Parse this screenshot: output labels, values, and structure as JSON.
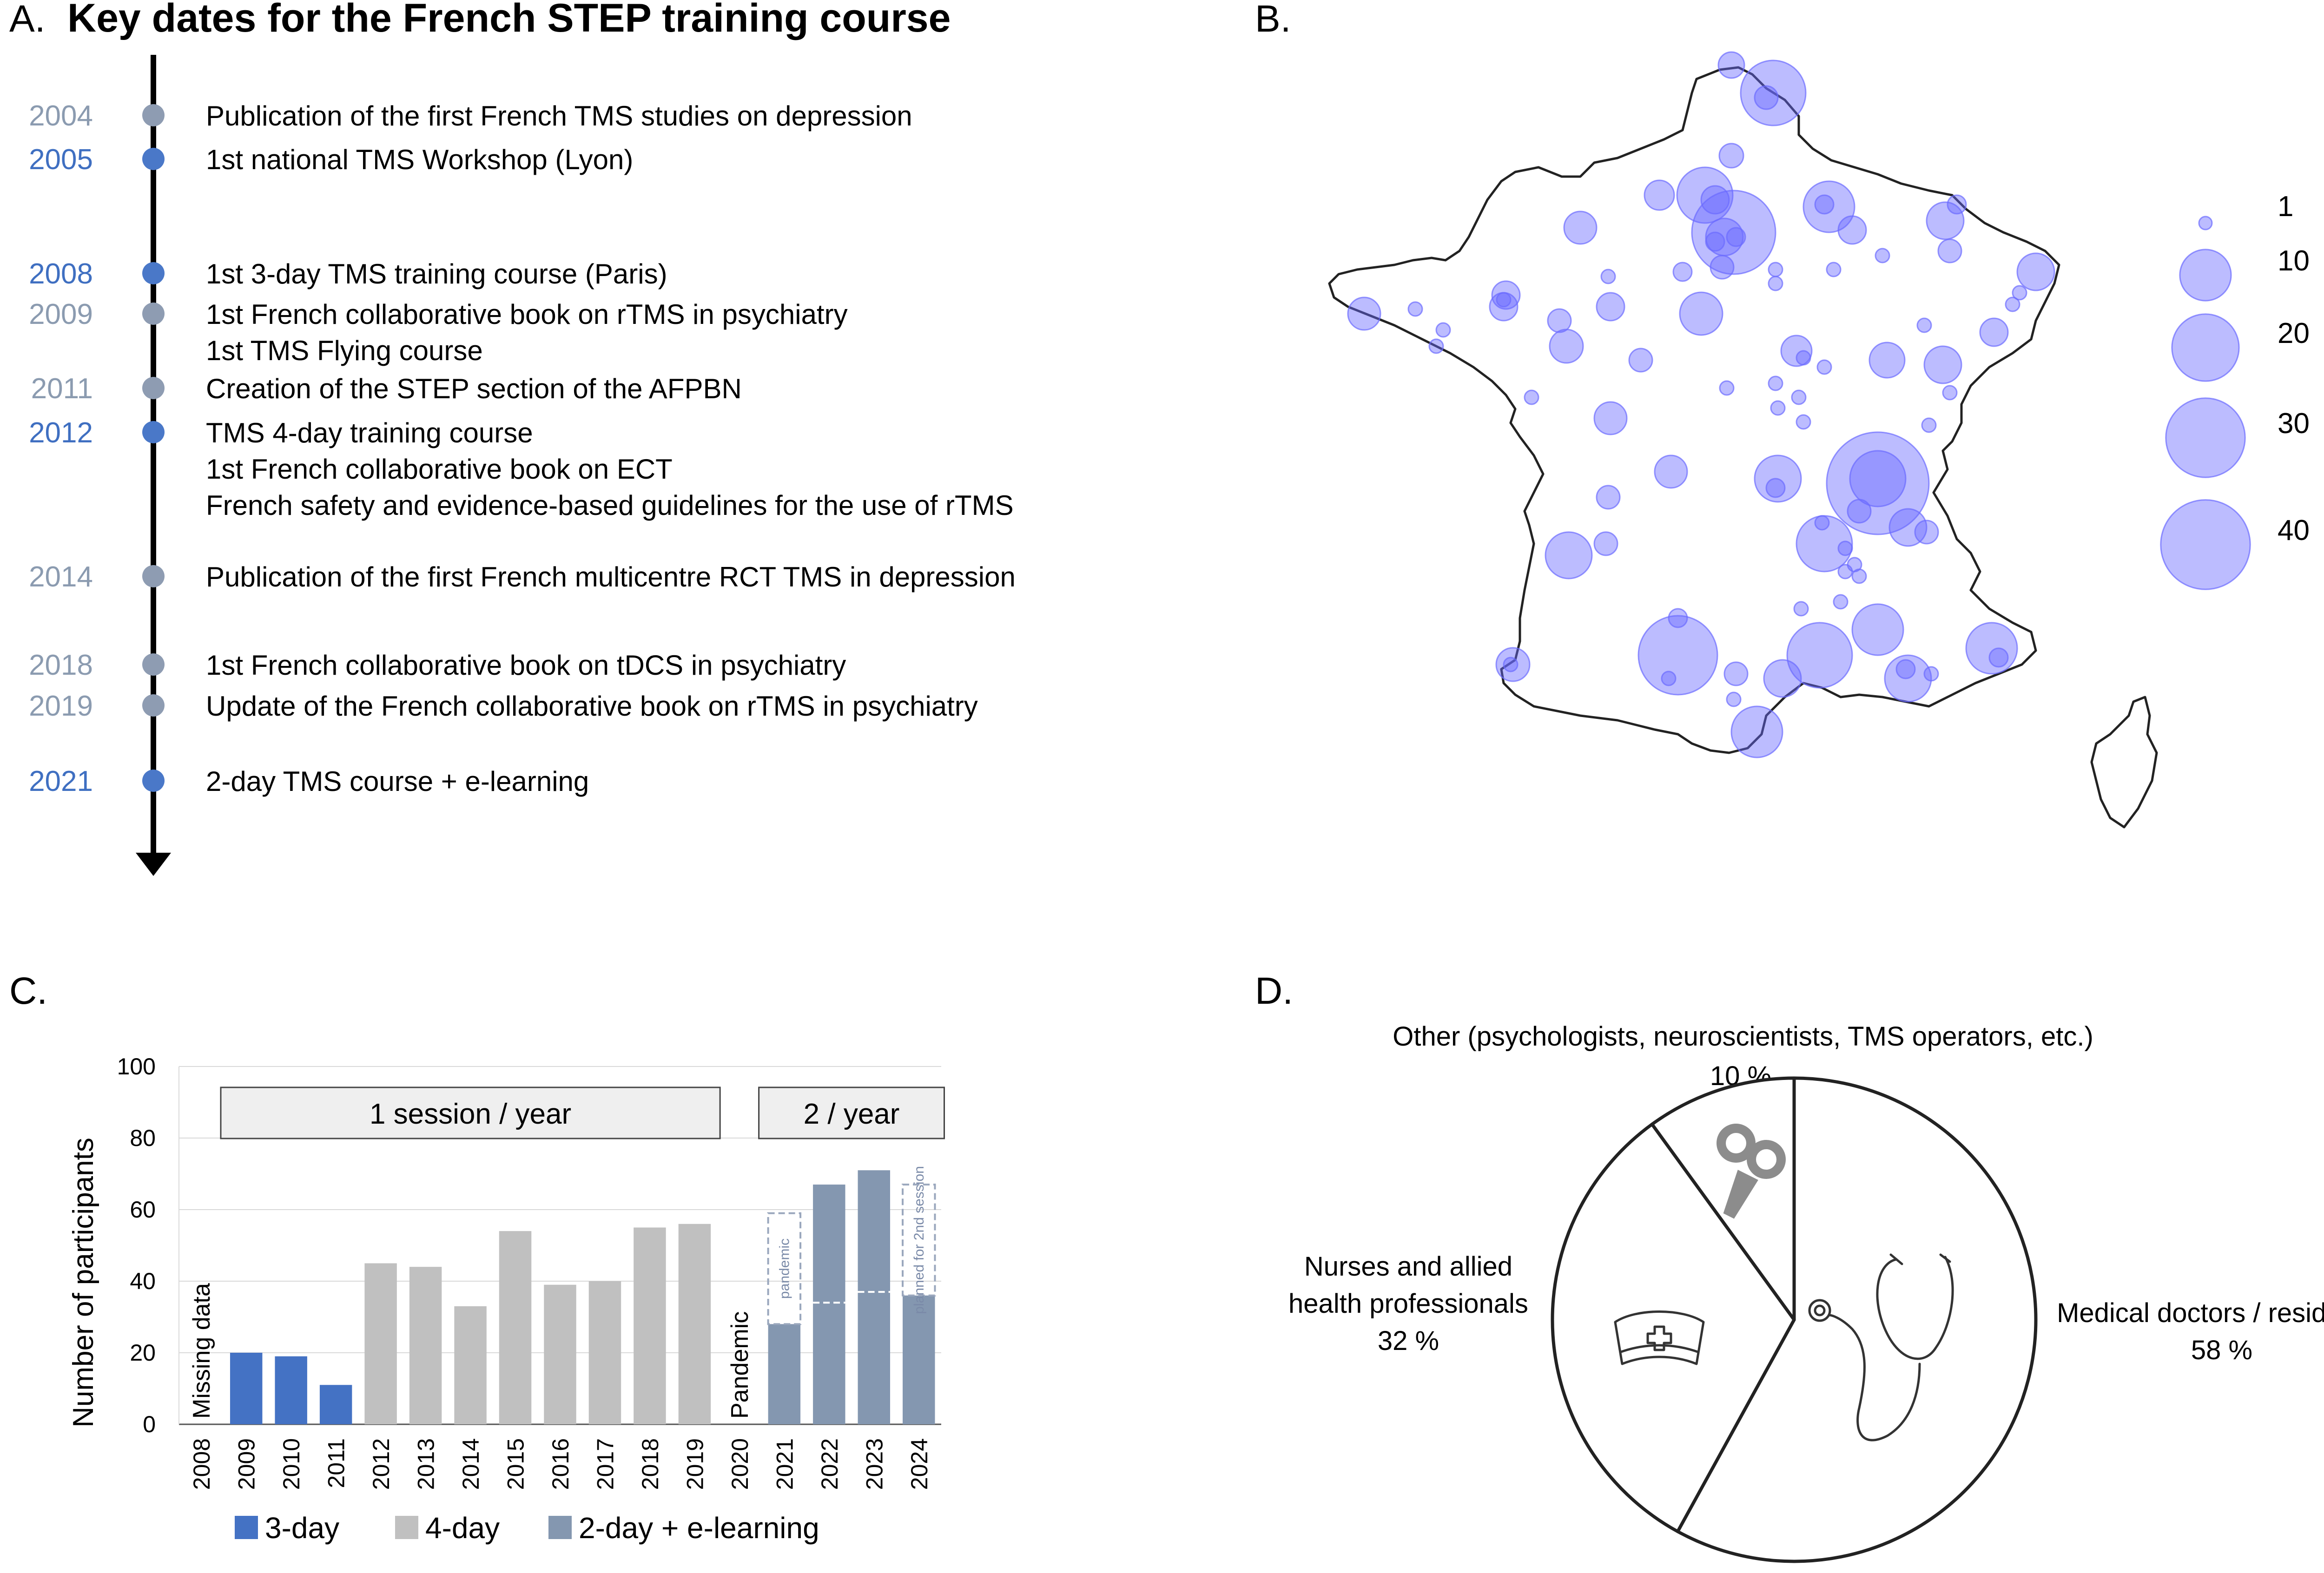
{
  "panel_a": {
    "letter": "A.",
    "title": "Key dates for the French STEP training course",
    "events": [
      {
        "year": "2004",
        "lines": [
          "Publication of the first French TMS studies on depression"
        ],
        "color": "#8b9bb0"
      },
      {
        "year": "2005",
        "lines": [
          "1st national TMS Workshop (Lyon)"
        ],
        "color": "#3f6fc1"
      },
      {
        "year": "2008",
        "lines": [
          "1st 3-day TMS training course (Paris)"
        ],
        "color": "#3f6fc1"
      },
      {
        "year": "2009",
        "lines": [
          "1st French collaborative book on rTMS in psychiatry",
          "1st TMS Flying course"
        ],
        "color": "#8b9bb0"
      },
      {
        "year": "2011",
        "lines": [
          "Creation of the STEP section of the AFPBN"
        ],
        "color": "#8b9bb0"
      },
      {
        "year": "2012",
        "lines": [
          "TMS 4-day training course",
          "1st French collaborative book on ECT",
          "French safety and evidence-based guidelines for the use of rTMS"
        ],
        "color": "#3f6fc1"
      },
      {
        "year": "2014",
        "lines": [
          "Publication of the first French multicentre RCT TMS in depression"
        ],
        "color": "#8b9bb0"
      },
      {
        "year": "2018",
        "lines": [
          "1st French collaborative book on tDCS in psychiatry"
        ],
        "color": "#8b9bb0"
      },
      {
        "year": "2019",
        "lines": [
          "Update of the French collaborative book on rTMS in psychiatry"
        ],
        "color": "#8b9bb0"
      },
      {
        "year": "2021",
        "lines": [
          "2-day TMS course + e-learning"
        ],
        "color": "#3f6fc1"
      }
    ],
    "dot_color_dark": "#4a78c8",
    "dot_color_light": "#8e9cb2"
  },
  "panel_b": {
    "letter": "B.",
    "legend": [
      {
        "label": "1",
        "value": 1
      },
      {
        "label": "10",
        "value": 10
      },
      {
        "label": "20",
        "value": 20
      },
      {
        "label": "30",
        "value": 30
      },
      {
        "label": "40",
        "value": 40
      }
    ],
    "bubble_color": "#6b6bff"
  },
  "panel_c": {
    "letter": "C.",
    "chart_data": {
      "type": "bar",
      "ylabel": "Number of participants",
      "ylim": [
        0,
        100
      ],
      "yticks": [
        "0",
        "20",
        "40",
        "60",
        "80",
        "100"
      ],
      "categories": [
        "2008",
        "2009",
        "2010",
        "2011",
        "2012",
        "2013",
        "2014",
        "2015",
        "2016",
        "2017",
        "2018",
        "2019",
        "2020",
        "2021",
        "2022",
        "2023",
        "2024"
      ],
      "series": [
        {
          "name": "3-day",
          "color": "#4472c4",
          "values": [
            null,
            20,
            19,
            11,
            null,
            null,
            null,
            null,
            null,
            null,
            null,
            null,
            null,
            null,
            null,
            null,
            null
          ]
        },
        {
          "name": "4-day",
          "color": "#c0c0c0",
          "values": [
            null,
            null,
            null,
            null,
            45,
            44,
            33,
            54,
            39,
            40,
            55,
            56,
            null,
            null,
            null,
            null,
            null
          ]
        },
        {
          "name": "2-day + e-learning",
          "color": "#8497b0",
          "values": [
            null,
            null,
            null,
            null,
            null,
            null,
            null,
            null,
            null,
            null,
            null,
            null,
            null,
            28,
            67,
            71,
            36
          ]
        }
      ],
      "session_splits": [
        null,
        null,
        null,
        null,
        null,
        null,
        null,
        null,
        null,
        null,
        null,
        null,
        null,
        null,
        34,
        37,
        null
      ],
      "dashed_boxes": [
        {
          "category": "2021",
          "from": 28,
          "to": 59,
          "text": "pandemic"
        },
        {
          "category": "2024",
          "from": 36,
          "to": 67,
          "text": "planned for 2nd session"
        }
      ],
      "annotations": [
        {
          "category": "2008",
          "text": "Missing data"
        },
        {
          "category": "2020",
          "text": "Pandemic"
        }
      ],
      "bands": [
        {
          "text": "1 session / year",
          "from": "2009",
          "to": "2019"
        },
        {
          "text": "2 / year",
          "from": "2021",
          "to": "2024"
        }
      ],
      "grid": true,
      "legend_position": "bottom"
    }
  },
  "panel_d": {
    "letter": "D.",
    "chart_data": {
      "type": "pie",
      "slices": [
        {
          "label": "Medical doctors / residents",
          "value": 58,
          "pct": "58 %"
        },
        {
          "label": "Nurses and allied health professionals",
          "value": 32,
          "pct": "32 %"
        },
        {
          "label": "Other (psychologists, neuroscientists, TMS operators, etc.)",
          "value": 10,
          "pct": "10 %"
        }
      ],
      "icons": [
        "stethoscope-icon",
        "nurse-cap-icon",
        "tms-coil-icon"
      ]
    },
    "labels": {
      "other": "Other (psychologists, neuroscientists, TMS operators, etc.)",
      "other_pct": "10 %",
      "nurses_1": "Nurses and allied",
      "nurses_2": "health professionals",
      "nurses_pct": "32 %",
      "doctors": "Medical doctors / residents",
      "doctors_pct": "58 %"
    }
  }
}
